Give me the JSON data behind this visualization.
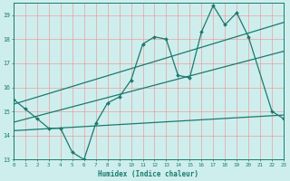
{
  "xlabel": "Humidex (Indice chaleur)",
  "bg_color": "#ceeeed",
  "grid_color": "#e8a0a0",
  "line_color": "#1a7a6e",
  "xlim": [
    0,
    23
  ],
  "ylim": [
    13,
    19.5
  ],
  "yticks": [
    13,
    14,
    15,
    16,
    17,
    18,
    19
  ],
  "xticks": [
    0,
    1,
    2,
    3,
    4,
    5,
    6,
    7,
    8,
    9,
    10,
    11,
    12,
    13,
    14,
    15,
    16,
    17,
    18,
    19,
    20,
    21,
    22,
    23
  ],
  "line1_x": [
    0,
    1,
    2,
    3,
    4,
    5,
    6,
    7,
    8,
    9,
    10,
    11,
    12,
    13,
    14,
    15,
    16,
    17,
    18,
    19,
    20,
    22,
    23
  ],
  "line1_y": [
    15.5,
    15.1,
    14.7,
    14.3,
    14.3,
    13.3,
    13.0,
    14.5,
    15.35,
    15.6,
    16.3,
    17.8,
    18.1,
    18.0,
    16.5,
    16.4,
    18.3,
    19.4,
    18.6,
    19.1,
    18.1,
    15.0,
    14.7
  ],
  "line_trend1_x": [
    0,
    23
  ],
  "line_trend1_y": [
    15.3,
    18.7
  ],
  "line_trend2_x": [
    0,
    23
  ],
  "line_trend2_y": [
    14.55,
    17.5
  ],
  "line3_x": [
    0,
    23
  ],
  "line3_y": [
    14.2,
    14.85
  ]
}
